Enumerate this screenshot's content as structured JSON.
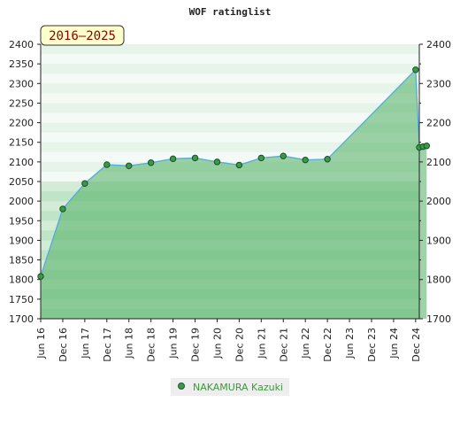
{
  "chart_data": {
    "type": "area",
    "title": "WOF ratinglist",
    "range_label": "2016–2025",
    "ylim": [
      1700,
      2400
    ],
    "yticks": [
      1700,
      1750,
      1800,
      1850,
      1900,
      1950,
      2000,
      2050,
      2100,
      2150,
      2200,
      2250,
      2300,
      2350,
      2400
    ],
    "right_yticks": [
      1700,
      1800,
      1900,
      2000,
      2100,
      2200,
      2300,
      2400
    ],
    "xlim": [
      "2016-06",
      "2025-01"
    ],
    "xticks": [
      "Jun 16",
      "Dec 16",
      "Jun 17",
      "Dec 17",
      "Jun 18",
      "Dec 18",
      "Jun 19",
      "Dec 19",
      "Jun 20",
      "Dec 20",
      "Jun 21",
      "Dec 21",
      "Jun 22",
      "Dec 22",
      "Jun 23",
      "Dec 23",
      "Jun 24",
      "Dec 24"
    ],
    "series": [
      {
        "name": "NAKAMURA Kazuki",
        "color": "#55aadd",
        "marker_color": "#3a9a4a",
        "x": [
          "2016-06",
          "2016-12",
          "2017-06",
          "2017-12",
          "2018-06",
          "2018-12",
          "2019-06",
          "2019-12",
          "2020-06",
          "2020-12",
          "2021-06",
          "2021-12",
          "2022-06",
          "2022-12",
          "2024-12",
          "2025-01",
          "2025-02",
          "2025-03"
        ],
        "y": [
          1808,
          1980,
          2045,
          2093,
          2090,
          2098,
          2108,
          2110,
          2100,
          2092,
          2110,
          2115,
          2105,
          2107,
          2335,
          2137,
          2139,
          2141
        ]
      }
    ],
    "legend_position": "bottom-center",
    "grid": true
  }
}
